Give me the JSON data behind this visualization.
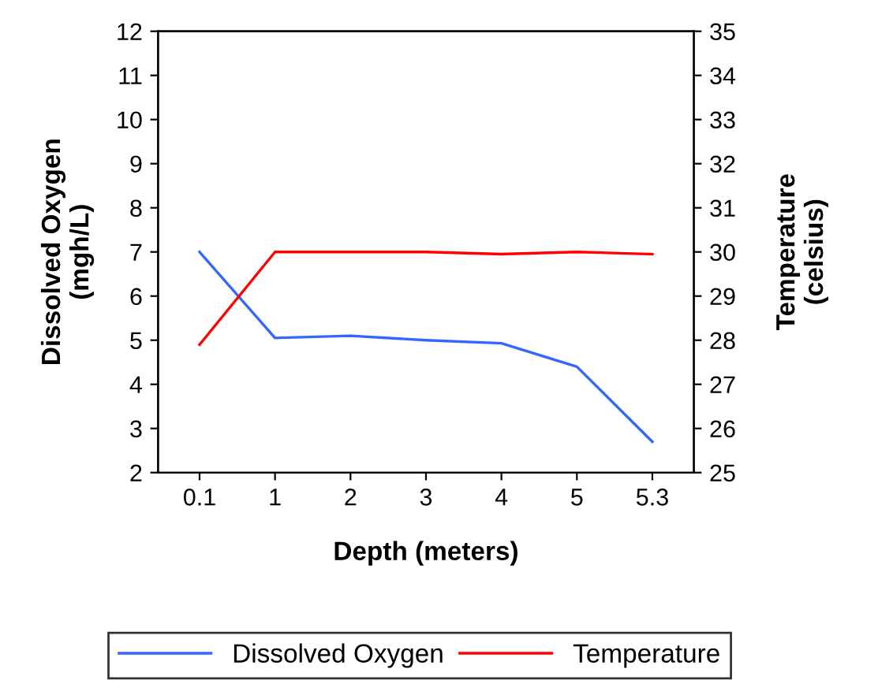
{
  "chart_data": {
    "type": "line",
    "xlabel": "Depth (meters)",
    "ylabel": "Dissolved Oxygen\n(mgh/L)",
    "y2label": "Temperature\n(celsius)",
    "categories": [
      "0.1",
      "1",
      "2",
      "3",
      "4",
      "5",
      "5.3"
    ],
    "series": [
      {
        "name": "Dissolved Oxygen",
        "color": "#3366ff",
        "values": [
          7.0,
          5.05,
          5.1,
          5.0,
          4.93,
          4.4,
          2.7
        ]
      },
      {
        "name": "Temperature",
        "color": "#ff0000",
        "axis": "y2",
        "values": [
          27.9,
          30.0,
          30.0,
          30.0,
          29.95,
          30.0,
          29.95
        ]
      }
    ],
    "ylim": [
      2,
      12
    ],
    "yticks": [
      2,
      3,
      4,
      5,
      6,
      7,
      8,
      9,
      10,
      11,
      12
    ],
    "y2lim": [
      25,
      35
    ],
    "y2ticks": [
      25,
      26,
      27,
      28,
      29,
      30,
      31,
      32,
      33,
      34,
      35
    ],
    "grid": false,
    "legend": "bottom",
    "marker": "none",
    "line_style": "solid"
  }
}
